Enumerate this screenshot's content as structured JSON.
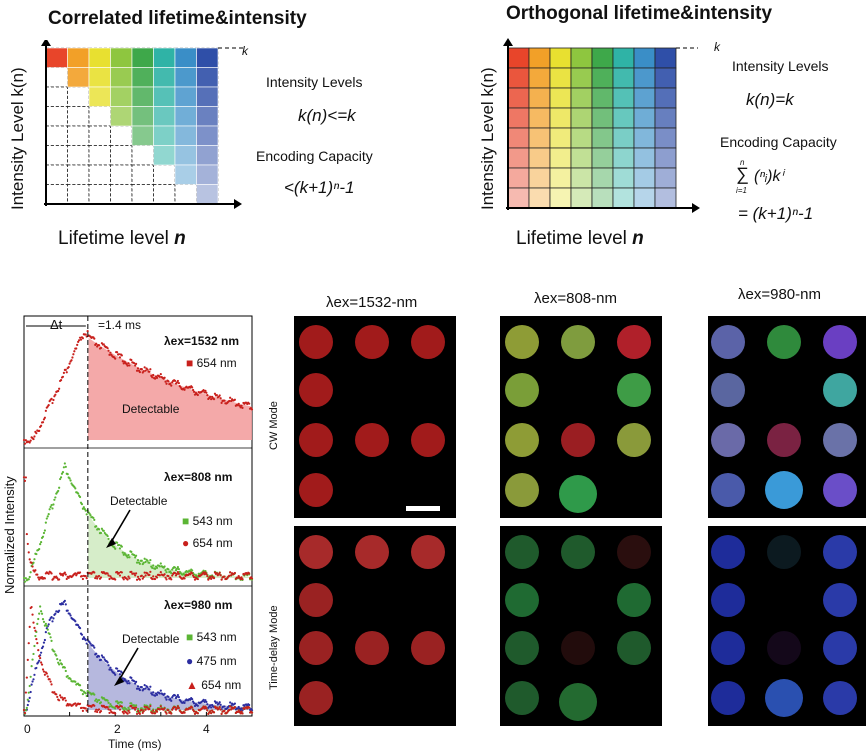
{
  "top_left": {
    "title": "Correlated  lifetime&intensity",
    "ylabel": "Intensity Level k(n)",
    "xlabel_text": "Lifetime level ",
    "xlabel_var": "n",
    "k_mark": "k",
    "intensity_heading": "Intensity  Levels",
    "intensity_formula": "k(n)<=k",
    "capacity_heading": "Encoding Capacity",
    "capacity_formula": "<(k+1)ⁿ-1"
  },
  "top_right": {
    "title": "Orthogonal lifetime&intensity",
    "ylabel": "Intensity Level k(n)",
    "xlabel_text": "Lifetime level ",
    "xlabel_var": "n",
    "k_mark": "k",
    "intensity_heading": "Intensity  Levels",
    "intensity_formula": "k(n)=k",
    "capacity_heading": "Encoding Capacity",
    "capacity_sum": "∑",
    "capacity_upper": "n",
    "capacity_lower": "i=1",
    "capacity_binom": "(ⁿᵢ)kⁱ",
    "capacity_result": "= (k+1)ⁿ-1"
  },
  "decay_plot": {
    "ylabel": "Normalized Intensity",
    "xlabel": "Time (ms)",
    "x_ticks": [
      "0",
      "2",
      "4"
    ],
    "delta_t": "Δt",
    "delay_note": "=1.4 ms",
    "panels": [
      {
        "excitation": "λex=1532 nm",
        "detectable": "Detectable",
        "legend": [
          "654 nm"
        ]
      },
      {
        "excitation": "λex=808 nm",
        "detectable": "Detectable",
        "legend": [
          "543 nm",
          "654 nm"
        ]
      },
      {
        "excitation": "λex=980 nm",
        "detectable": "Detectable",
        "legend": [
          "543 nm",
          "475 nm",
          "654 nm"
        ]
      }
    ],
    "colors": {
      "red": "#c8201c",
      "green": "#5bb534",
      "blue": "#2b2da0",
      "fill_red": "#f29a9a",
      "fill_green": "#cfeac0",
      "fill_blue": "#a9acd8"
    }
  },
  "image_grid": {
    "excitation_headers": [
      "λex=1532-nm",
      "λex=808-nm",
      "λex=980-nm"
    ],
    "mode_labels": [
      "CW Mode",
      "Time-delay Mode"
    ]
  }
}
